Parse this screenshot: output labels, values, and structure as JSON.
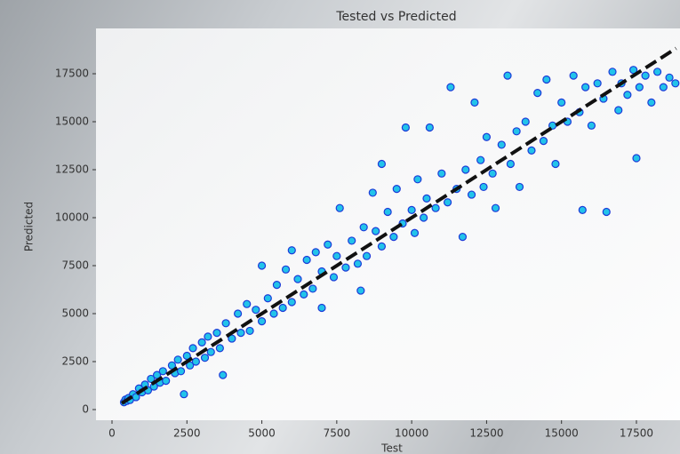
{
  "chart_data": {
    "type": "scatter",
    "title": "Tested vs Predicted",
    "x_label": "Test",
    "y_label": "Predicted",
    "xlim": [
      -534,
      18954
    ],
    "ylim": [
      -556,
      19861
    ],
    "xticks": [
      0,
      2500,
      5000,
      7500,
      10000,
      12500,
      15000,
      17500
    ],
    "yticks": [
      0,
      2500,
      5000,
      7500,
      10000,
      12500,
      15000,
      17500
    ],
    "grid": false,
    "series": [
      {
        "color": "#22c3ea",
        "edgecolor": "#1d3bd8",
        "x": [
          400,
          450,
          500,
          550,
          600,
          700,
          800,
          900,
          1000,
          1100,
          1200,
          1300,
          1400,
          1500,
          1600,
          1700,
          1800,
          2000,
          2100,
          2200,
          2300,
          2400,
          2500,
          2600,
          2700,
          2800,
          3000,
          3100,
          3200,
          3300,
          3500,
          3600,
          3700,
          3800,
          4000,
          4200,
          4300,
          4500,
          4600,
          4800,
          5000,
          5000,
          5200,
          5400,
          5500,
          5700,
          5800,
          6000,
          6000,
          6200,
          6400,
          6500,
          6700,
          6800,
          7000,
          7000,
          7200,
          7400,
          7500,
          7600,
          7800,
          8000,
          8200,
          8300,
          8400,
          8500,
          8700,
          8800,
          9000,
          9000,
          9200,
          9400,
          9500,
          9700,
          9800,
          10000,
          10100,
          10200,
          10400,
          10500,
          10600,
          10800,
          11000,
          11200,
          11300,
          11500,
          11700,
          11800,
          12000,
          12100,
          12300,
          12400,
          12500,
          12700,
          12800,
          13000,
          13200,
          13300,
          13500,
          13600,
          13800,
          14000,
          14200,
          14400,
          14500,
          14700,
          14800,
          15000,
          15200,
          15400,
          15600,
          15700,
          15800,
          16000,
          16200,
          16400,
          16500,
          16700,
          16900,
          17000,
          17200,
          17400,
          17500,
          17600,
          17800,
          18000,
          18200,
          18400,
          18600,
          18800
        ],
        "values": [
          380,
          520,
          450,
          600,
          500,
          800,
          650,
          1100,
          900,
          1300,
          1000,
          1600,
          1200,
          1800,
          1400,
          2000,
          1500,
          2300,
          1900,
          2600,
          2000,
          800,
          2800,
          2300,
          3200,
          2500,
          3500,
          2700,
          3800,
          3000,
          4000,
          3200,
          1800,
          4500,
          3700,
          5000,
          4000,
          5500,
          4100,
          5200,
          4600,
          7500,
          5800,
          5000,
          6500,
          5300,
          7300,
          5600,
          8300,
          6800,
          6000,
          7800,
          6300,
          8200,
          5300,
          7200,
          8600,
          6900,
          8000,
          10500,
          7400,
          8800,
          7600,
          6200,
          9500,
          8000,
          11300,
          9300,
          8500,
          12800,
          10300,
          9000,
          11500,
          9700,
          14700,
          10400,
          9200,
          12000,
          10000,
          11000,
          14700,
          10500,
          12300,
          10800,
          16800,
          11500,
          9000,
          12500,
          11200,
          16000,
          13000,
          11600,
          14200,
          12300,
          10500,
          13800,
          17400,
          12800,
          14500,
          11600,
          15000,
          13500,
          16500,
          14000,
          17200,
          14800,
          12800,
          16000,
          15000,
          17400,
          15500,
          10400,
          16800,
          14800,
          17000,
          16200,
          10300,
          17600,
          15600,
          17000,
          16400,
          17700,
          13100,
          16800,
          17400,
          16000,
          17600,
          16800,
          17300,
          17000
        ]
      }
    ],
    "reference_line": {
      "color": "#111111",
      "x": [
        326,
        18823
      ],
      "values": [
        326,
        18823
      ]
    }
  }
}
